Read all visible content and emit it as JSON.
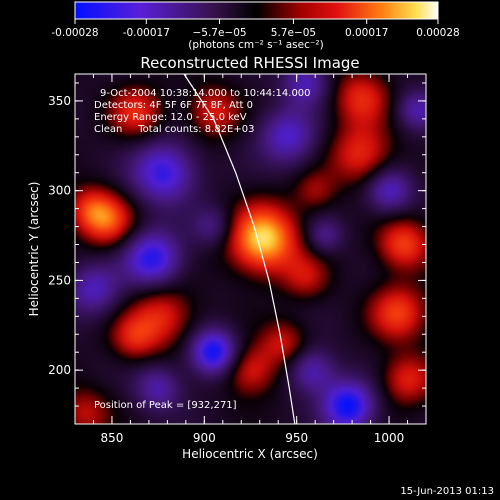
{
  "chart_data": {
    "type": "heatmap",
    "title": "Reconstructed RHESSI Image",
    "xlabel": "Heliocentric X (arcsec)",
    "ylabel": "Heliocentric Y (arcsec)",
    "xlim": [
      830,
      1020
    ],
    "ylim": [
      170,
      365
    ],
    "x_ticks": [
      850,
      900,
      950,
      1000
    ],
    "y_ticks": [
      200,
      250,
      300,
      350
    ],
    "x_tick_labels": [
      "850",
      "900",
      "950",
      "1000"
    ],
    "y_tick_labels": [
      "200",
      "250",
      "300",
      "350"
    ],
    "colorbar": {
      "min": -0.00028,
      "max": 0.00028,
      "ticks": [
        -0.00028,
        -0.00017,
        -5.7e-05,
        5.7e-05,
        0.00017,
        0.00028
      ],
      "tick_labels": [
        "-0.00028",
        "-0.00017",
        "−5.7e−05",
        "5.7e−05",
        "0.00017",
        "0.00028"
      ],
      "units": "(photons cm⁻² s⁻¹ asec⁻²)",
      "colormap": "blue-purple-red-yellow-white"
    },
    "annotations": [
      "9-Oct-2004 10:38:14.000 to 10:44:14.000",
      "Detectors: 4F 5F 6F 7F 8F, Att 0",
      "Energy Range: 12.0 - 25.0 keV",
      "Clean     Total counts: 8.82E+03"
    ],
    "peak_text": "Position of Peak = [932,271]",
    "peak": [
      932,
      271
    ],
    "limb_curve": [
      [
        889,
        365
      ],
      [
        905,
        340
      ],
      [
        917,
        310
      ],
      [
        927,
        280
      ],
      [
        935,
        250
      ],
      [
        941,
        220
      ],
      [
        946,
        190
      ],
      [
        949,
        170
      ]
    ],
    "sources": [
      {
        "x": 932,
        "y": 273,
        "amp": 1.0,
        "sigma": 13
      },
      {
        "x": 848,
        "y": 283,
        "amp": 0.58,
        "sigma": 10
      },
      {
        "x": 838,
        "y": 290,
        "amp": 0.45,
        "sigma": 9
      },
      {
        "x": 1008,
        "y": 270,
        "amp": 0.6,
        "sigma": 10
      },
      {
        "x": 1005,
        "y": 232,
        "amp": 0.58,
        "sigma": 11
      },
      {
        "x": 985,
        "y": 320,
        "amp": 0.52,
        "sigma": 12
      },
      {
        "x": 985,
        "y": 352,
        "amp": 0.5,
        "sigma": 11
      },
      {
        "x": 905,
        "y": 344,
        "amp": 0.46,
        "sigma": 10
      },
      {
        "x": 863,
        "y": 344,
        "amp": 0.5,
        "sigma": 10
      },
      {
        "x": 877,
        "y": 230,
        "amp": 0.5,
        "sigma": 12
      },
      {
        "x": 862,
        "y": 218,
        "amp": 0.42,
        "sigma": 9
      },
      {
        "x": 925,
        "y": 200,
        "amp": 0.48,
        "sigma": 10
      },
      {
        "x": 943,
        "y": 215,
        "amp": 0.4,
        "sigma": 9
      },
      {
        "x": 835,
        "y": 176,
        "amp": 0.38,
        "sigma": 10
      },
      {
        "x": 1010,
        "y": 195,
        "amp": 0.48,
        "sigma": 10
      },
      {
        "x": 955,
        "y": 252,
        "amp": 0.35,
        "sigma": 9
      },
      {
        "x": 960,
        "y": 300,
        "amp": 0.3,
        "sigma": 8
      },
      {
        "x": 872,
        "y": 262,
        "amp": -0.75,
        "sigma": 11
      },
      {
        "x": 878,
        "y": 310,
        "amp": -0.7,
        "sigma": 12
      },
      {
        "x": 905,
        "y": 210,
        "amp": -0.85,
        "sigma": 9
      },
      {
        "x": 978,
        "y": 180,
        "amp": -0.85,
        "sigma": 10
      },
      {
        "x": 958,
        "y": 200,
        "amp": -0.5,
        "sigma": 9
      },
      {
        "x": 1000,
        "y": 300,
        "amp": -0.55,
        "sigma": 9
      },
      {
        "x": 945,
        "y": 330,
        "amp": -0.55,
        "sigma": 11
      },
      {
        "x": 840,
        "y": 245,
        "amp": -0.5,
        "sigma": 10
      },
      {
        "x": 955,
        "y": 360,
        "amp": -0.5,
        "sigma": 9
      },
      {
        "x": 875,
        "y": 190,
        "amp": -0.45,
        "sigma": 9
      },
      {
        "x": 1015,
        "y": 345,
        "amp": -0.45,
        "sigma": 8
      },
      {
        "x": 905,
        "y": 280,
        "amp": -0.35,
        "sigma": 8
      },
      {
        "x": 965,
        "y": 275,
        "amp": -0.35,
        "sigma": 7
      }
    ]
  },
  "footer": {
    "timestamp": "15-Jun-2013 01:13"
  }
}
